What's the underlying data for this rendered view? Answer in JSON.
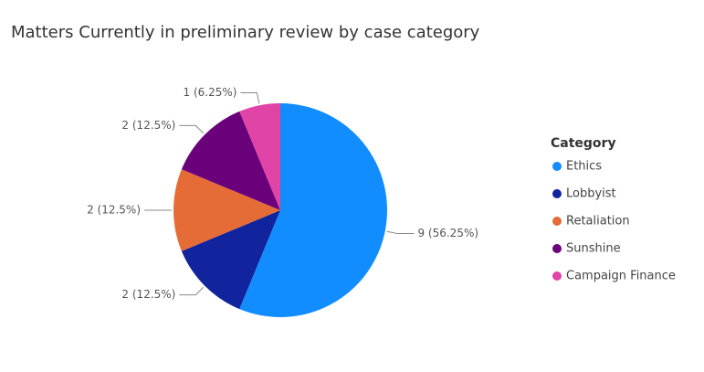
{
  "chart_data": {
    "type": "pie",
    "title": "Matters Currently in preliminary review by case category",
    "legend_title": "Category",
    "categories": [
      "Ethics",
      "Lobbyist",
      "Retaliation",
      "Sunshine",
      "Campaign Finance"
    ],
    "values": [
      9,
      2,
      2,
      2,
      1
    ],
    "value_labels": [
      "9 (56.25%)",
      "2 (12.5%)",
      "2 (12.5%)",
      "2 (12.5%)",
      "1 (6.25%)"
    ],
    "colors": [
      "#118dff",
      "#12239e",
      "#e66c37",
      "#6b007b",
      "#e044a7"
    ],
    "legend_position": "right"
  }
}
